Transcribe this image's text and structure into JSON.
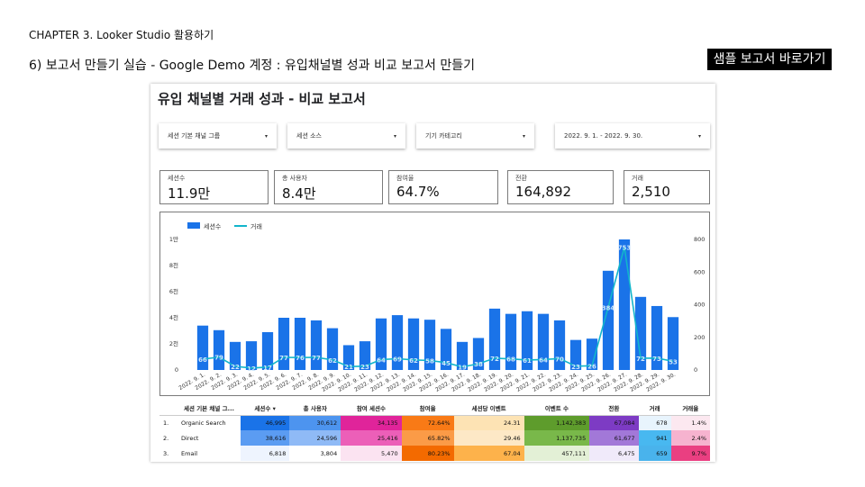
{
  "page": {
    "chapter": "CHAPTER 3. Looker Studio 활용하기",
    "subtitle": "6) 보고서 만들기 실습 - Google Demo 계정 : 유입채널별 성과 비교 보고서 만들기",
    "sample_link": "샘플 보고서 바로가기"
  },
  "report": {
    "title": "유입 채널별 거래 성과 - 비교 보고서",
    "filters": [
      {
        "label": "세션 기본 채널 그룹"
      },
      {
        "label": "세션 소스"
      },
      {
        "label": "기기 카테고리"
      },
      {
        "label": "2022. 9. 1. - 2022. 9. 30."
      }
    ],
    "caret_icon": "▾",
    "kpis": [
      {
        "label": "세션수",
        "value": "11.9만"
      },
      {
        "label": "총 사용자",
        "value": "8.4만"
      },
      {
        "label": "참여율",
        "value": "64.7%"
      },
      {
        "label": "전환",
        "value": "164,892"
      },
      {
        "label": "거래",
        "value": "2,510"
      }
    ]
  },
  "chart_data": {
    "type": "bar",
    "legend": [
      "세션수",
      "거래"
    ],
    "legend_placement": "top-left",
    "categories": [
      "2022. 9. 1.",
      "2022. 9. 2.",
      "2022. 9. 3.",
      "2022. 9. 4.",
      "2022. 9. 5.",
      "2022. 9. 6.",
      "2022. 9. 7.",
      "2022. 9. 8.",
      "2022. 9. 9.",
      "2022. 9. 10.",
      "2022. 9. 11.",
      "2022. 9. 12.",
      "2022. 9. 13.",
      "2022. 9. 14.",
      "2022. 9. 15.",
      "2022. 9. 16.",
      "2022. 9. 17.",
      "2022. 9. 18.",
      "2022. 9. 19.",
      "2022. 9. 20.",
      "2022. 9. 21.",
      "2022. 9. 22.",
      "2022. 9. 23.",
      "2022. 9. 24.",
      "2022. 9. 25.",
      "2022. 9. 26.",
      "2022. 9. 27.",
      "2022. 9. 28.",
      "2022. 9. 29.",
      "2022. 9. 30."
    ],
    "series": [
      {
        "name": "세션수",
        "type": "bar",
        "axis": "left",
        "color": "#1a73e8",
        "values": [
          3400,
          3050,
          2150,
          2200,
          2900,
          4000,
          4000,
          3800,
          3200,
          1900,
          2200,
          3950,
          4200,
          3950,
          3850,
          3150,
          2150,
          2450,
          4700,
          4300,
          4500,
          4300,
          3800,
          2300,
          2400,
          7600,
          10000,
          5600,
          4900,
          4050
        ]
      },
      {
        "name": "거래",
        "type": "line",
        "axis": "right",
        "color": "#12b5cb",
        "values": [
          66,
          79,
          22,
          12,
          17,
          77,
          76,
          77,
          62,
          21,
          23,
          64,
          69,
          62,
          58,
          45,
          19,
          38,
          72,
          68,
          61,
          64,
          70,
          23,
          26,
          384,
          753,
          72,
          73,
          53
        ]
      }
    ],
    "y_left": {
      "ticks": [
        "0",
        "2천",
        "4천",
        "6천",
        "8천",
        "1만"
      ],
      "range": [
        0,
        10000
      ]
    },
    "y_right": {
      "ticks": [
        "0",
        "200",
        "400",
        "600",
        "800"
      ],
      "range": [
        0,
        800
      ]
    }
  },
  "table": {
    "headers": [
      "",
      "세션 기본 채널 그...",
      "세션수 ▾",
      "총 사용자",
      "참여 세션수",
      "참여율",
      "세션당 이벤트",
      "이벤트 수",
      "전환",
      "거래",
      "거래율"
    ],
    "rows": [
      {
        "idx": "1.",
        "channel": "Organic Search",
        "cells": [
          "46,995",
          "30,612",
          "34,135",
          "72.64%",
          "24.31",
          "1,142,383",
          "67,084",
          "678",
          "1.4%"
        ]
      },
      {
        "idx": "2.",
        "channel": "Direct",
        "cells": [
          "38,616",
          "24,596",
          "25,416",
          "65.82%",
          "29.46",
          "1,137,735",
          "61,677",
          "941",
          "2.4%"
        ]
      },
      {
        "idx": "3.",
        "channel": "Email",
        "cells": [
          "6,818",
          "3,804",
          "5,470",
          "80.23%",
          "67.04",
          "457,111",
          "6,475",
          "659",
          "9.7%"
        ]
      }
    ],
    "cell_colors": [
      [
        "#1a73e8",
        "#4d94ef",
        "#e0249a",
        "#f97a16",
        "#fde3b4",
        "#5e9c2c",
        "#7d3bc4",
        "#e8f4fd",
        "#fce8f0"
      ],
      [
        "#5b9cf2",
        "#8fbaf6",
        "#ec5fb8",
        "#fb9b47",
        "#fde8c6",
        "#79b84a",
        "#a278d8",
        "#48b8f0",
        "#f6b3cf"
      ],
      [
        "#eef4fe",
        "#ffffff",
        "#fbe3f1",
        "#f36a00",
        "#fdb24b",
        "#e3f0d6",
        "#f0eafa",
        "#49b3ec",
        "#ea3f81"
      ]
    ]
  }
}
